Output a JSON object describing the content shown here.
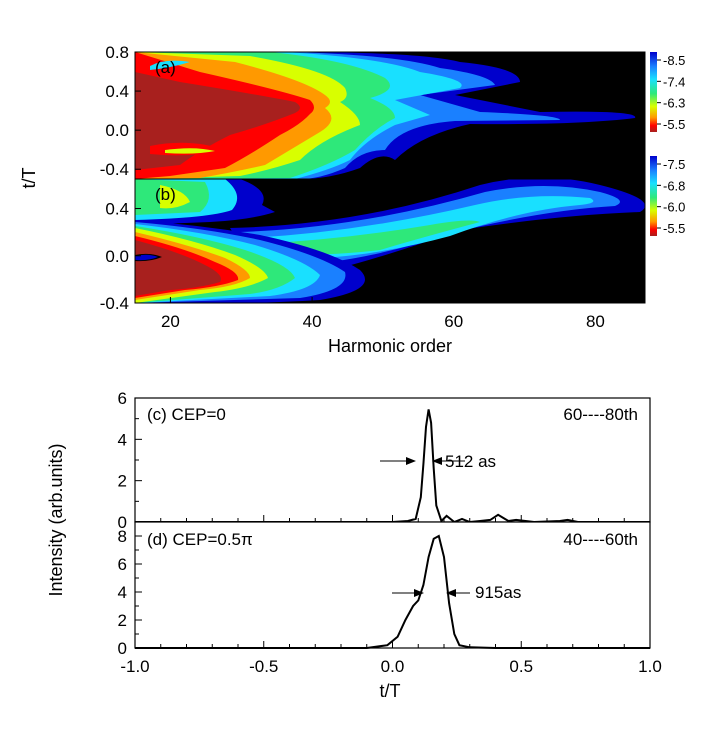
{
  "chart_data": [
    {
      "type": "heatmap",
      "panel_label": "(a)",
      "xlabel": "",
      "ylabel": "",
      "xlim": [
        15,
        87
      ],
      "ylim": [
        -0.5,
        0.8
      ],
      "y_ticks": [
        "0.8",
        "0.4",
        "0.0",
        "-0.4"
      ],
      "colorbar_ticks": [
        "-8.5",
        "-7.4",
        "-6.3",
        "-5.5"
      ],
      "colormap": [
        "#000000",
        "#0000cc",
        "#1a80ff",
        "#19e0ff",
        "#2ee87a",
        "#d8ff00",
        "#ff9900",
        "#ff0000",
        "#a8201e"
      ]
    },
    {
      "type": "heatmap",
      "panel_label": "(b)",
      "xlabel": "Harmonic order",
      "ylabel": "t/T",
      "xlim": [
        15,
        87
      ],
      "ylim": [
        -0.4,
        0.65
      ],
      "x_ticks": [
        "20",
        "40",
        "60",
        "80"
      ],
      "y_ticks": [
        "0.4",
        "0.0",
        "-0.4"
      ],
      "colorbar_ticks": [
        "-7.5",
        "-6.8",
        "-6.0",
        "-5.5"
      ]
    },
    {
      "type": "line",
      "panel_label": "(c) CEP=0",
      "range_label": "60----80th",
      "width_label": "512 as",
      "xlim": [
        -1.0,
        1.0
      ],
      "ylim": [
        0,
        6
      ],
      "y_ticks": [
        "0",
        "2",
        "4",
        "6"
      ],
      "series": [
        {
          "x": [
            -1.0,
            0.0,
            0.06,
            0.09,
            0.11,
            0.12,
            0.13,
            0.14,
            0.15,
            0.16,
            0.17,
            0.19,
            0.21,
            0.24,
            0.27,
            0.3,
            0.34,
            0.38,
            0.41,
            0.43,
            0.45,
            0.48,
            0.55,
            0.65,
            0.68,
            0.72,
            1.0
          ],
          "y": [
            0,
            0,
            0.05,
            0.15,
            1.2,
            2.8,
            4.6,
            5.45,
            4.8,
            2.6,
            0.8,
            0.05,
            0.3,
            0.0,
            0.15,
            0.0,
            0.05,
            0.1,
            0.35,
            0.2,
            0.05,
            0.1,
            0.0,
            0.05,
            0.1,
            0.0,
            0.0
          ]
        }
      ]
    },
    {
      "type": "line",
      "panel_label": "(d) CEP=0.5π",
      "range_label": "40----60th",
      "width_label": "915as",
      "xlabel": "t/T",
      "ylabel": "Intensity (arb.units)",
      "xlim": [
        -1.0,
        1.0
      ],
      "ylim": [
        0,
        9
      ],
      "x_ticks": [
        "-1.0",
        "-0.5",
        "0.0",
        "0.5",
        "1.0"
      ],
      "y_ticks": [
        "0",
        "2",
        "4",
        "6",
        "8"
      ],
      "series": [
        {
          "x": [
            -1.0,
            -0.1,
            -0.02,
            0.02,
            0.05,
            0.08,
            0.1,
            0.12,
            0.14,
            0.16,
            0.18,
            0.2,
            0.22,
            0.24,
            0.26,
            0.3,
            0.4,
            1.0
          ],
          "y": [
            0,
            0,
            0.2,
            0.8,
            2.0,
            3.0,
            3.4,
            4.5,
            6.5,
            7.8,
            8.0,
            6.5,
            3.2,
            1.0,
            0.2,
            0.05,
            0.0,
            0.0
          ]
        }
      ]
    }
  ]
}
